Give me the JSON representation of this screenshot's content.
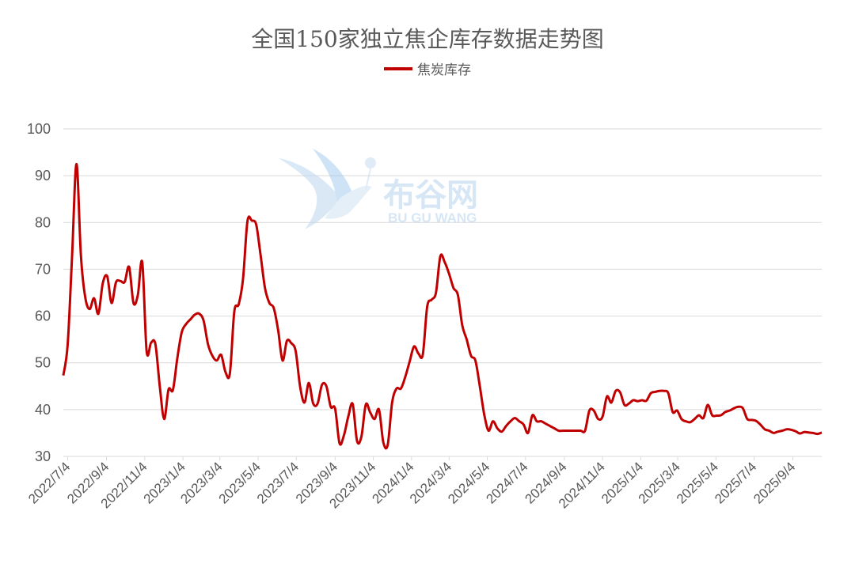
{
  "chart_data": {
    "type": "line",
    "title": "全国150家独立焦企库存数据走势图",
    "legend_position": "top-center",
    "xlabel": "",
    "ylabel": "",
    "ylim": [
      30,
      100
    ],
    "yticks": [
      30,
      40,
      50,
      60,
      70,
      80,
      90,
      100
    ],
    "xticks": [
      "2022/7/4",
      "2022/9/4",
      "2022/11/4",
      "2023/1/4",
      "2023/3/4",
      "2023/5/4",
      "2023/7/4",
      "2023/9/4",
      "2023/11/4",
      "2024/1/4",
      "2024/3/4",
      "2024/5/4",
      "2024/7/4",
      "2024/9/4",
      "2024/11/4",
      "2025/1/4",
      "2025/3/4",
      "2025/5/4",
      "2025/7/4",
      "2025/9/4"
    ],
    "grid": "horizontal",
    "series": [
      {
        "name": "焦炭库存",
        "color": "#c00000",
        "x": [
          "2022-06-27",
          "2022-07-04",
          "2022-07-11",
          "2022-07-18",
          "2022-07-25",
          "2022-08-01",
          "2022-08-08",
          "2022-08-15",
          "2022-08-22",
          "2022-08-29",
          "2022-09-05",
          "2022-09-12",
          "2022-09-19",
          "2022-09-26",
          "2022-10-03",
          "2022-10-10",
          "2022-10-17",
          "2022-10-24",
          "2022-10-31",
          "2022-11-07",
          "2022-11-14",
          "2022-11-21",
          "2022-11-28",
          "2022-12-05",
          "2022-12-12",
          "2022-12-19",
          "2022-12-26",
          "2023-01-02",
          "2023-01-09",
          "2023-01-16",
          "2023-01-23",
          "2023-01-30",
          "2023-02-06",
          "2023-02-13",
          "2023-02-20",
          "2023-02-27",
          "2023-03-06",
          "2023-03-13",
          "2023-03-20",
          "2023-03-27",
          "2023-04-03",
          "2023-04-10",
          "2023-04-17",
          "2023-04-24",
          "2023-05-01",
          "2023-05-08",
          "2023-05-15",
          "2023-05-22",
          "2023-05-29",
          "2023-06-05",
          "2023-06-12",
          "2023-06-19",
          "2023-06-26",
          "2023-07-03",
          "2023-07-10",
          "2023-07-17",
          "2023-07-24",
          "2023-07-31",
          "2023-08-07",
          "2023-08-14",
          "2023-08-21",
          "2023-08-28",
          "2023-09-04",
          "2023-09-11",
          "2023-09-18",
          "2023-09-25",
          "2023-10-02",
          "2023-10-09",
          "2023-10-16",
          "2023-10-23",
          "2023-10-30",
          "2023-11-06",
          "2023-11-13",
          "2023-11-20",
          "2023-11-27",
          "2023-12-04",
          "2023-12-11",
          "2023-12-18",
          "2023-12-25",
          "2024-01-01",
          "2024-01-08",
          "2024-01-15",
          "2024-01-22",
          "2024-01-29",
          "2024-02-05",
          "2024-02-12",
          "2024-02-19",
          "2024-02-26",
          "2024-03-04",
          "2024-03-11",
          "2024-03-18",
          "2024-03-25",
          "2024-04-01",
          "2024-04-08",
          "2024-04-15",
          "2024-04-22",
          "2024-04-29",
          "2024-05-06",
          "2024-05-13",
          "2024-05-20",
          "2024-05-27",
          "2024-06-03",
          "2024-06-10",
          "2024-06-17",
          "2024-06-24",
          "2024-07-01",
          "2024-07-08",
          "2024-07-15",
          "2024-07-22",
          "2024-07-29",
          "2024-08-05",
          "2024-08-12",
          "2024-08-19",
          "2024-08-26",
          "2024-09-02",
          "2024-09-09",
          "2024-09-16",
          "2024-09-23",
          "2024-09-30",
          "2024-10-07",
          "2024-10-14",
          "2024-10-21",
          "2024-10-28",
          "2024-11-04",
          "2024-11-11",
          "2024-11-18",
          "2024-11-25",
          "2024-12-02",
          "2024-12-09",
          "2024-12-16",
          "2024-12-23",
          "2024-12-30",
          "2025-01-06",
          "2025-01-13",
          "2025-01-20",
          "2025-01-27",
          "2025-02-03",
          "2025-02-10",
          "2025-02-17",
          "2025-02-24",
          "2025-03-03",
          "2025-03-10",
          "2025-03-17",
          "2025-03-24",
          "2025-03-31",
          "2025-04-07",
          "2025-04-14",
          "2025-04-21",
          "2025-04-28",
          "2025-05-05",
          "2025-05-12",
          "2025-05-19",
          "2025-05-26",
          "2025-06-02",
          "2025-06-09",
          "2025-06-16",
          "2025-06-23",
          "2025-06-30",
          "2025-07-07",
          "2025-07-14",
          "2025-07-21",
          "2025-07-28",
          "2025-08-04",
          "2025-08-11",
          "2025-08-18",
          "2025-08-25",
          "2025-09-01",
          "2025-09-08",
          "2025-09-15",
          "2025-09-22",
          "2025-09-29",
          "2025-10-06",
          "2025-10-13",
          "2025-10-20"
        ],
        "values": [
          47.3,
          54.0,
          73.0,
          92.5,
          73.0,
          64.0,
          61.5,
          63.8,
          60.5,
          67.0,
          68.5,
          62.8,
          67.2,
          67.5,
          67.3,
          70.5,
          62.8,
          64.5,
          71.5,
          52.5,
          54.3,
          54.0,
          45.0,
          38.0,
          44.3,
          44.2,
          51.0,
          56.5,
          58.3,
          59.3,
          60.3,
          60.5,
          59.0,
          54.0,
          51.5,
          50.5,
          51.7,
          48.0,
          47.8,
          61.0,
          62.5,
          68.0,
          80.3,
          80.4,
          79.5,
          73.0,
          66.0,
          62.8,
          61.7,
          57.0,
          50.5,
          54.7,
          54.2,
          52.5,
          45.0,
          41.5,
          45.7,
          41.3,
          41.3,
          45.3,
          45.0,
          40.6,
          40.2,
          32.8,
          34.5,
          38.5,
          41.2,
          33.3,
          34.3,
          41.1,
          39.4,
          38.0,
          40.0,
          33.0,
          32.5,
          41.5,
          44.5,
          44.5,
          47.0,
          50.3,
          53.5,
          52.0,
          51.8,
          62.0,
          63.5,
          65.0,
          72.8,
          71.5,
          69.0,
          66.0,
          64.5,
          58.0,
          55.0,
          51.5,
          50.5,
          45.0,
          39.0,
          35.5,
          37.5,
          36.0,
          35.3,
          36.5,
          37.5,
          38.2,
          37.5,
          36.8,
          35.0,
          38.8,
          37.5,
          37.5,
          37.0,
          36.5,
          36.0,
          35.5,
          35.5,
          35.5,
          35.5,
          35.5,
          35.5,
          35.5,
          39.8,
          39.8,
          38.0,
          38.5,
          42.8,
          41.5,
          44.0,
          43.7,
          41.0,
          41.3,
          42.0,
          41.8,
          42.0,
          41.9,
          43.5,
          43.8,
          44.0,
          44.0,
          43.5,
          39.5,
          39.8,
          38.0,
          37.5,
          37.3,
          38.0,
          38.8,
          38.2,
          41.0,
          38.8,
          38.7,
          38.8,
          39.5,
          39.8,
          40.3,
          40.6,
          40.3,
          38.0,
          37.8,
          37.6,
          36.8,
          35.8,
          35.5,
          35.0,
          35.3,
          35.5,
          35.8,
          35.7,
          35.4,
          34.9,
          35.2,
          35.1,
          35.0,
          34.8,
          35.1
        ]
      }
    ]
  },
  "watermark": {
    "brand_cn": "布谷网",
    "brand_en": "BU GU WANG",
    "icon": "bird-logo"
  }
}
